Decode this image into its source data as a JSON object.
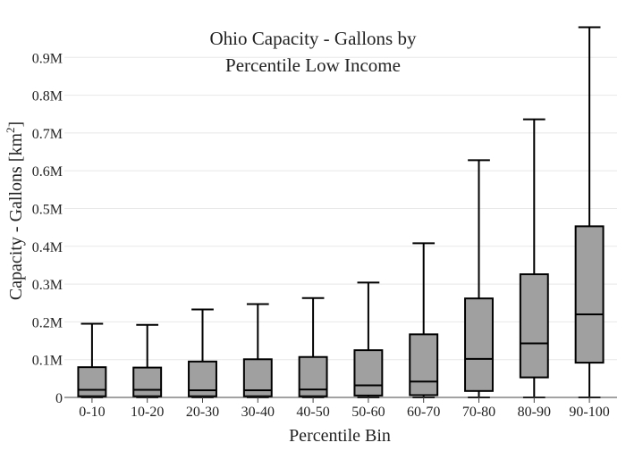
{
  "chart_data": {
    "type": "box",
    "title_lines": [
      "Ohio Capacity - Gallons by",
      "Percentile Low Income"
    ],
    "xlabel": "Percentile Bin",
    "ylabel_main": "Capacity - Gallons  [km",
    "ylabel_sup": "2",
    "ylabel_end": "]",
    "ylim": [
      0,
      1000000
    ],
    "yticks": [
      {
        "value": 0,
        "label": "0"
      },
      {
        "value": 100000,
        "label": "0.1M"
      },
      {
        "value": 200000,
        "label": "0.2M"
      },
      {
        "value": 300000,
        "label": "0.3M"
      },
      {
        "value": 400000,
        "label": "0.4M"
      },
      {
        "value": 500000,
        "label": "0.5M"
      },
      {
        "value": 600000,
        "label": "0.6M"
      },
      {
        "value": 700000,
        "label": "0.7M"
      },
      {
        "value": 800000,
        "label": "0.8M"
      },
      {
        "value": 900000,
        "label": "0.9M"
      }
    ],
    "grid": true,
    "box_color": "#a0a0a0",
    "line_color": "#000000",
    "grid_color": "#e8e8e8",
    "categories": [
      "0-10",
      "10-20",
      "20-30",
      "30-40",
      "40-50",
      "50-60",
      "60-70",
      "70-80",
      "80-90",
      "90-100"
    ],
    "boxes": [
      {
        "min": 0,
        "q1": 3000,
        "median": 20000,
        "q3": 80000,
        "max": 195000
      },
      {
        "min": 0,
        "q1": 3000,
        "median": 20000,
        "q3": 79000,
        "max": 192000
      },
      {
        "min": 0,
        "q1": 3000,
        "median": 19000,
        "q3": 95000,
        "max": 233000
      },
      {
        "min": 0,
        "q1": 3000,
        "median": 19000,
        "q3": 101000,
        "max": 247000
      },
      {
        "min": 0,
        "q1": 3000,
        "median": 21000,
        "q3": 107000,
        "max": 263000
      },
      {
        "min": 0,
        "q1": 5000,
        "median": 32000,
        "q3": 125000,
        "max": 304000
      },
      {
        "min": 0,
        "q1": 6000,
        "median": 42000,
        "q3": 167000,
        "max": 408000
      },
      {
        "min": 0,
        "q1": 17000,
        "median": 102000,
        "q3": 262000,
        "max": 628000
      },
      {
        "min": 0,
        "q1": 53000,
        "median": 143000,
        "q3": 326000,
        "max": 736000
      },
      {
        "min": 0,
        "q1": 92000,
        "median": 220000,
        "q3": 453000,
        "max": 980000
      }
    ]
  }
}
